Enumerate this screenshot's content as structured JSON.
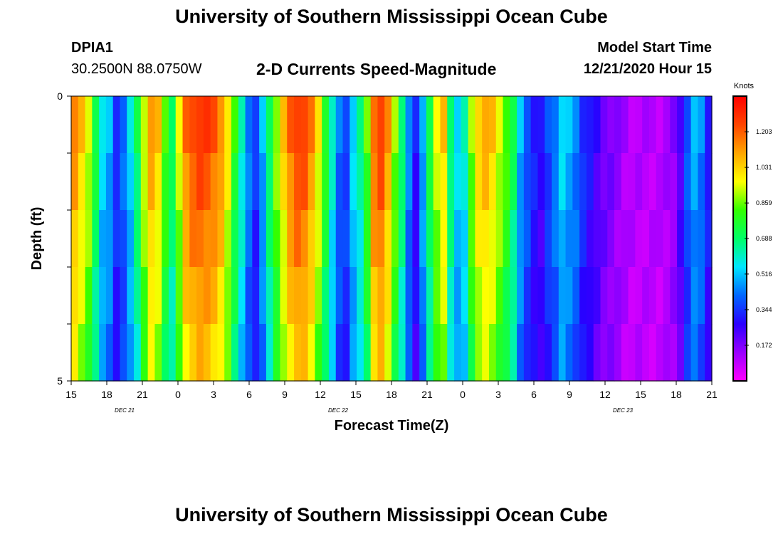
{
  "header": {
    "title": "University of Southern Mississippi Ocean Cube",
    "station": "DPIA1",
    "coordinates": "30.2500N 88.0750W",
    "plot_title": "2-D Currents Speed-Magnitude",
    "model_start_label": "Model Start Time",
    "model_start_value": "12/21/2020 Hour 15"
  },
  "footer": {
    "title": "University of Southern Mississippi Ocean Cube"
  },
  "chart_data": {
    "type": "heatmap",
    "title": "2-D Currents Speed-Magnitude",
    "xlabel": "Forecast Time(Z)",
    "ylabel": "Depth (ft)",
    "x_tick_labels": [
      "15",
      "18",
      "21",
      "0",
      "3",
      "6",
      "9",
      "12",
      "15",
      "18",
      "21",
      "0",
      "3",
      "6",
      "9",
      "12",
      "15",
      "18",
      "21"
    ],
    "date_labels": [
      "DEC 21",
      "DEC 22",
      "DEC 23"
    ],
    "y_tick_labels": [
      "0",
      "5"
    ],
    "ylim": [
      0,
      5
    ],
    "depth_levels": 5,
    "colorbar": {
      "label": "Knots",
      "ticks": [
        "1.203",
        "1.031",
        "0.859",
        "0.688",
        "0.516",
        "0.344",
        "0.172"
      ],
      "range": [
        0,
        1.375
      ],
      "colors": [
        "#ff00ff",
        "#9900ff",
        "#2a00ff",
        "#0066ff",
        "#00e6ff",
        "#00ff66",
        "#33ff00",
        "#ffff00",
        "#ffa500",
        "#ff4400",
        "#ff0000"
      ]
    },
    "speed_profile_knots": [
      1.15,
      1.05,
      0.95,
      0.75,
      0.55,
      0.5,
      0.35,
      0.42,
      0.55,
      0.72,
      0.95,
      1.12,
      1.05,
      0.85,
      0.72,
      0.95,
      1.18,
      1.25,
      1.28,
      1.26,
      1.22,
      1.15,
      1.0,
      0.8,
      0.62,
      0.45,
      0.35,
      0.5,
      0.72,
      0.9,
      1.05,
      1.2,
      1.27,
      1.25,
      1.15,
      1.0,
      0.8,
      0.6,
      0.42,
      0.38,
      0.55,
      0.65,
      0.85,
      1.2,
      1.26,
      1.12,
      0.9,
      0.7,
      0.45,
      0.3,
      0.5,
      0.75,
      0.95,
      1.05,
      0.7,
      0.55,
      0.6,
      0.9,
      1.05,
      1.1,
      1.05,
      0.95,
      0.85,
      0.72,
      0.5,
      0.4,
      0.32,
      0.28,
      0.38,
      0.45,
      0.55,
      0.5,
      0.45,
      0.35,
      0.3,
      0.25,
      0.2,
      0.18,
      0.15,
      0.12,
      0.1,
      0.1,
      0.1,
      0.1,
      0.1,
      0.12,
      0.15,
      0.25,
      0.4,
      0.5,
      0.45,
      0.32
    ]
  }
}
